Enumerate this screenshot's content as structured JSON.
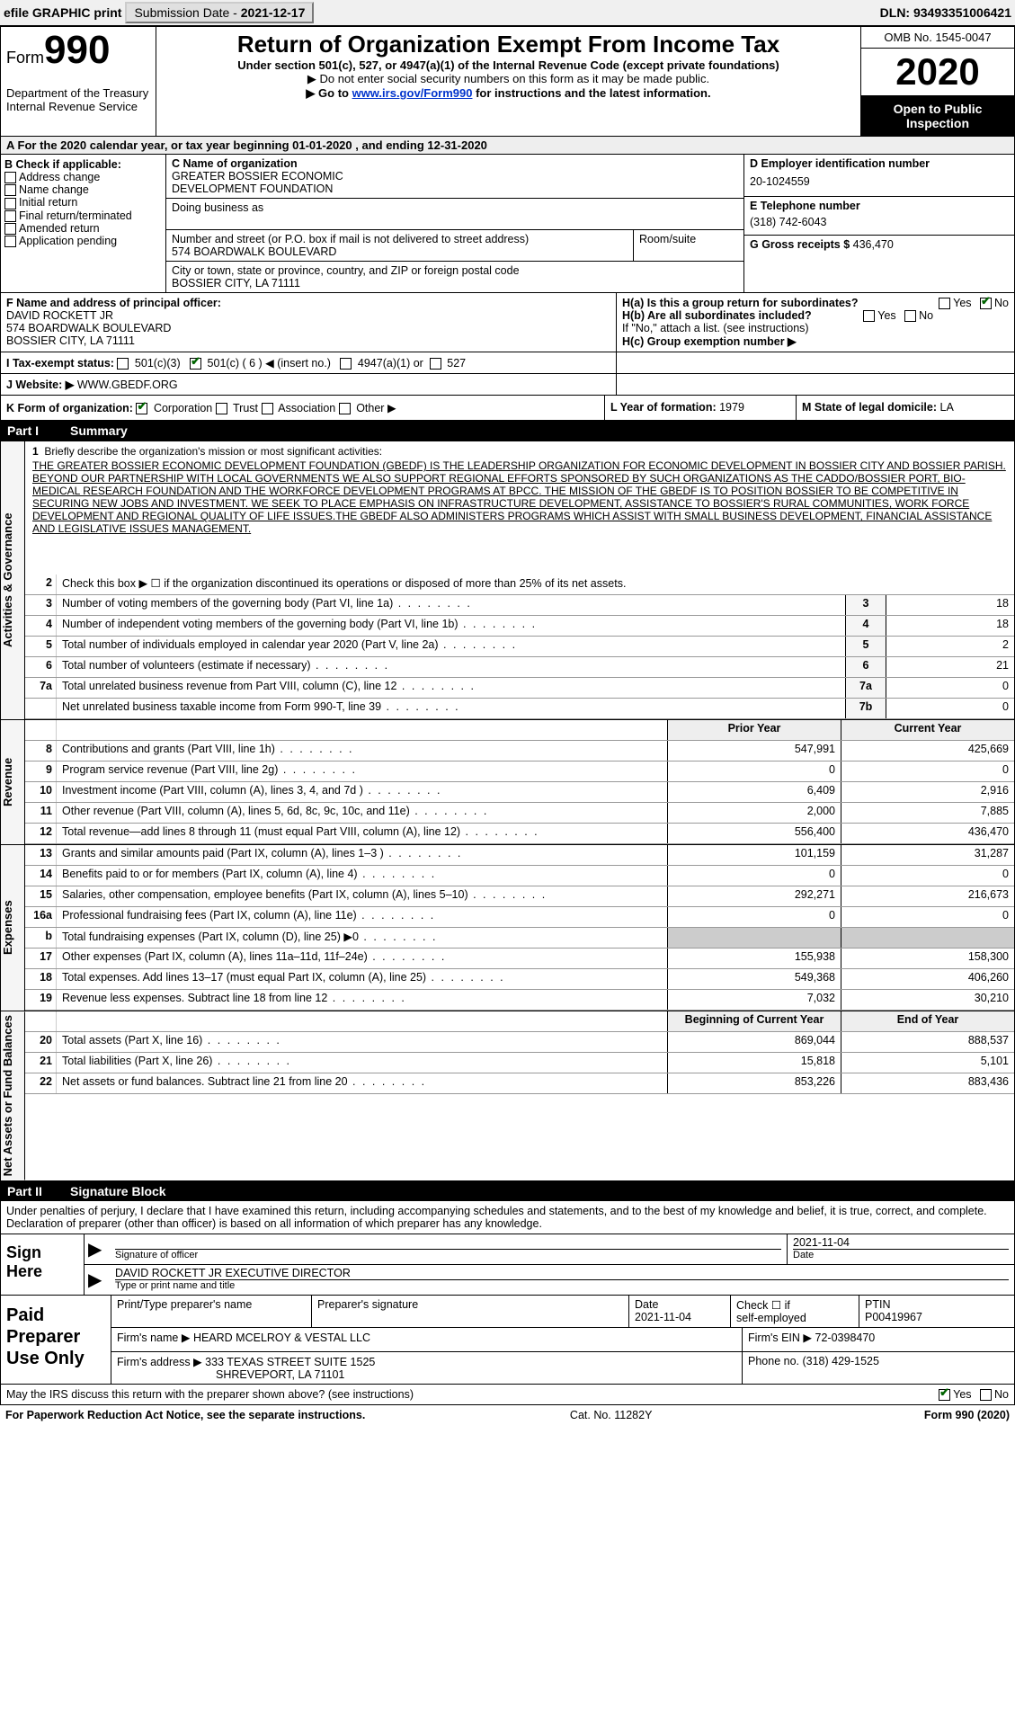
{
  "topbar": {
    "efile": "efile GRAPHIC print",
    "submission_label": "Submission Date - ",
    "submission_date": "2021-12-17",
    "dln": "DLN: 93493351006421"
  },
  "header": {
    "form_word": "Form",
    "form_num": "990",
    "dept1": "Department of the Treasury",
    "dept2": "Internal Revenue Service",
    "title": "Return of Organization Exempt From Income Tax",
    "sub1": "Under section 501(c), 527, or 4947(a)(1) of the Internal Revenue Code (except private foundations)",
    "sub2": "▶ Do not enter social security numbers on this form as it may be made public.",
    "sub3a": "▶ Go to ",
    "sub3link": "www.irs.gov/Form990",
    "sub3b": " for instructions and the latest information.",
    "omb": "OMB No. 1545-0047",
    "year": "2020",
    "open": "Open to Public Inspection"
  },
  "rowA": "A For the 2020 calendar year, or tax year beginning 01-01-2020    , and ending 12-31-2020",
  "B": {
    "title": "B Check if applicable:",
    "items": [
      "Address change",
      "Name change",
      "Initial return",
      "Final return/terminated",
      "Amended return",
      "Application pending"
    ]
  },
  "C": {
    "name_label": "C Name of organization",
    "name1": "GREATER BOSSIER ECONOMIC",
    "name2": "DEVELOPMENT FOUNDATION",
    "dba_label": "Doing business as",
    "street_label": "Number and street (or P.O. box if mail is not delivered to street address)",
    "street": "574 BOARDWALK BOULEVARD",
    "room_label": "Room/suite",
    "city_label": "City or town, state or province, country, and ZIP or foreign postal code",
    "city": "BOSSIER CITY, LA  71111"
  },
  "D": {
    "label": "D Employer identification number",
    "value": "20-1024559"
  },
  "E": {
    "label": "E Telephone number",
    "value": "(318) 742-6043"
  },
  "G": {
    "label": "G Gross receipts $",
    "value": "436,470"
  },
  "F": {
    "label": "F  Name and address of principal officer:",
    "line1": "DAVID ROCKETT JR",
    "line2": "574 BOARDWALK BOULEVARD",
    "line3": "BOSSIER CITY, LA  71111"
  },
  "H": {
    "a": "H(a)  Is this a group return for subordinates?",
    "b": "H(b)  Are all subordinates included?",
    "b_note": "If \"No,\" attach a list. (see instructions)",
    "c": "H(c)  Group exemption number ▶",
    "yes": "Yes",
    "no": "No"
  },
  "I": {
    "label": "I   Tax-exempt status:",
    "c3": "501(c)(3)",
    "c": "501(c) ( 6 ) ◀ (insert no.)",
    "a1": "4947(a)(1) or",
    "s527": "527"
  },
  "J": {
    "label": "J   Website: ▶",
    "value": "WWW.GBEDF.ORG"
  },
  "K": {
    "label": "K Form of organization:",
    "corp": "Corporation",
    "trust": "Trust",
    "assoc": "Association",
    "other": "Other ▶"
  },
  "L": {
    "label": "L Year of formation:",
    "value": "1979"
  },
  "M": {
    "label": "M State of legal domicile:",
    "value": "LA"
  },
  "parts": {
    "p1": "Part I",
    "p1t": "Summary",
    "p2": "Part II",
    "p2t": "Signature Block"
  },
  "sides": {
    "ag": "Activities & Governance",
    "rev": "Revenue",
    "exp": "Expenses",
    "net": "Net Assets or Fund Balances"
  },
  "summary": {
    "q1": "Briefly describe the organization's mission or most significant activities:",
    "mission": "THE GREATER BOSSIER ECONOMIC DEVELOPMENT FOUNDATION (GBEDF) IS THE LEADERSHIP ORGANIZATION FOR ECONOMIC DEVELOPMENT IN BOSSIER CITY AND BOSSIER PARISH. BEYOND OUR PARTNERSHIP WITH LOCAL GOVERNMENTS WE ALSO SUPPORT REGIONAL EFFORTS SPONSORED BY SUCH ORGANIZATIONS AS THE CADDO/BOSSIER PORT, BIO-MEDICAL RESEARCH FOUNDATION AND THE WORKFORCE DEVELOPMENT PROGRAMS AT BPCC. THE MISSION OF THE GBEDF IS TO POSITION BOSSIER TO BE COMPETITIVE IN SECURING NEW JOBS AND INVESTMENT. WE SEEK TO PLACE EMPHASIS ON INFRASTRUCTURE DEVELOPMENT, ASSISTANCE TO BOSSIER'S RURAL COMMUNITIES, WORK FORCE DEVELOPMENT AND REGIONAL QUALITY OF LIFE ISSUES.THE GBEDF ALSO ADMINISTERS PROGRAMS WHICH ASSIST WITH SMALL BUSINESS DEVELOPMENT, FINANCIAL ASSISTANCE AND LEGISLATIVE ISSUES MANAGEMENT.",
    "q2": "Check this box ▶ ☐ if the organization discontinued its operations or disposed of more than 25% of its net assets.",
    "rows_boxed": [
      {
        "n": "3",
        "d": "Number of voting members of the governing body (Part VI, line 1a)",
        "box": "3",
        "v": "18"
      },
      {
        "n": "4",
        "d": "Number of independent voting members of the governing body (Part VI, line 1b)",
        "box": "4",
        "v": "18"
      },
      {
        "n": "5",
        "d": "Total number of individuals employed in calendar year 2020 (Part V, line 2a)",
        "box": "5",
        "v": "2"
      },
      {
        "n": "6",
        "d": "Total number of volunteers (estimate if necessary)",
        "box": "6",
        "v": "21"
      },
      {
        "n": "7a",
        "d": "Total unrelated business revenue from Part VIII, column (C), line 12",
        "box": "7a",
        "v": "0"
      },
      {
        "n": "",
        "d": "Net unrelated business taxable income from Form 990-T, line 39",
        "box": "7b",
        "v": "0"
      }
    ],
    "cols": {
      "prior": "Prior Year",
      "curr": "Current Year"
    },
    "rev": [
      {
        "n": "8",
        "d": "Contributions and grants (Part VIII, line 1h)",
        "p": "547,991",
        "c": "425,669"
      },
      {
        "n": "9",
        "d": "Program service revenue (Part VIII, line 2g)",
        "p": "0",
        "c": "0"
      },
      {
        "n": "10",
        "d": "Investment income (Part VIII, column (A), lines 3, 4, and 7d )",
        "p": "6,409",
        "c": "2,916"
      },
      {
        "n": "11",
        "d": "Other revenue (Part VIII, column (A), lines 5, 6d, 8c, 9c, 10c, and 11e)",
        "p": "2,000",
        "c": "7,885"
      },
      {
        "n": "12",
        "d": "Total revenue—add lines 8 through 11 (must equal Part VIII, column (A), line 12)",
        "p": "556,400",
        "c": "436,470"
      }
    ],
    "exp": [
      {
        "n": "13",
        "d": "Grants and similar amounts paid (Part IX, column (A), lines 1–3 )",
        "p": "101,159",
        "c": "31,287"
      },
      {
        "n": "14",
        "d": "Benefits paid to or for members (Part IX, column (A), line 4)",
        "p": "0",
        "c": "0"
      },
      {
        "n": "15",
        "d": "Salaries, other compensation, employee benefits (Part IX, column (A), lines 5–10)",
        "p": "292,271",
        "c": "216,673"
      },
      {
        "n": "16a",
        "d": "Professional fundraising fees (Part IX, column (A), line 11e)",
        "p": "0",
        "c": "0"
      },
      {
        "n": "b",
        "d": "Total fundraising expenses (Part IX, column (D), line 25) ▶0",
        "p": "",
        "c": "",
        "grey": true
      },
      {
        "n": "17",
        "d": "Other expenses (Part IX, column (A), lines 11a–11d, 11f–24e)",
        "p": "155,938",
        "c": "158,300"
      },
      {
        "n": "18",
        "d": "Total expenses. Add lines 13–17 (must equal Part IX, column (A), line 25)",
        "p": "549,368",
        "c": "406,260"
      },
      {
        "n": "19",
        "d": "Revenue less expenses. Subtract line 18 from line 12",
        "p": "7,032",
        "c": "30,210"
      }
    ],
    "cols2": {
      "prior": "Beginning of Current Year",
      "curr": "End of Year"
    },
    "net": [
      {
        "n": "20",
        "d": "Total assets (Part X, line 16)",
        "p": "869,044",
        "c": "888,537"
      },
      {
        "n": "21",
        "d": "Total liabilities (Part X, line 26)",
        "p": "15,818",
        "c": "5,101"
      },
      {
        "n": "22",
        "d": "Net assets or fund balances. Subtract line 21 from line 20",
        "p": "853,226",
        "c": "883,436"
      }
    ]
  },
  "sig_intro": "Under penalties of perjury, I declare that I have examined this return, including accompanying schedules and statements, and to the best of my knowledge and belief, it is true, correct, and complete. Declaration of preparer (other than officer) is based on all information of which preparer has any knowledge.",
  "sign": {
    "label": "Sign Here",
    "sig_label": "Signature of officer",
    "date_label": "Date",
    "date": "2021-11-04",
    "name": "DAVID ROCKETT JR  EXECUTIVE DIRECTOR",
    "name_label": "Type or print name and title"
  },
  "prep": {
    "label": "Paid Preparer Use Only",
    "h1": "Print/Type preparer's name",
    "h2": "Preparer's signature",
    "h3": "Date",
    "h3v": "2021-11-04",
    "h4a": "Check ☐ if",
    "h4b": "self-employed",
    "h5": "PTIN",
    "h5v": "P00419967",
    "firm_label": "Firm's name     ▶",
    "firm": "HEARD MCELROY & VESTAL LLC",
    "ein_label": "Firm's EIN ▶",
    "ein": "72-0398470",
    "addr_label": "Firm's address ▶",
    "addr1": "333 TEXAS STREET SUITE 1525",
    "addr2": "SHREVEPORT, LA  71101",
    "phone_label": "Phone no.",
    "phone": "(318) 429-1525"
  },
  "irs_q": "May the IRS discuss this return with the preparer shown above? (see instructions)",
  "footer": {
    "left": "For Paperwork Reduction Act Notice, see the separate instructions.",
    "center": "Cat. No. 11282Y",
    "right": "Form 990 (2020)"
  },
  "yn": {
    "yes": "Yes",
    "no": "No"
  }
}
